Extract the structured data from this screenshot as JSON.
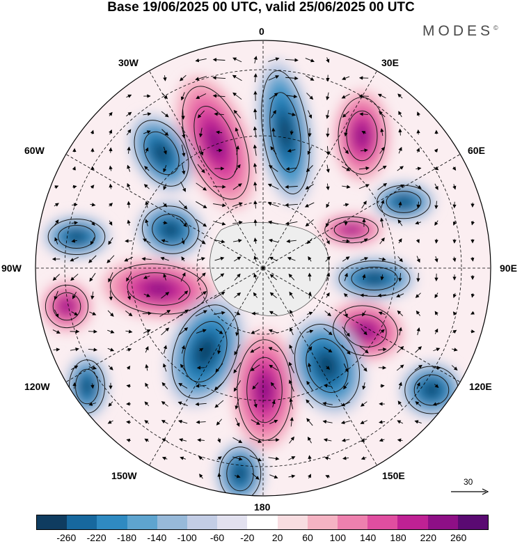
{
  "title": "Base 19/06/2025 00 UTC, valid 25/06/2025 00 UTC",
  "brand": "MODES",
  "brand_mark": "©",
  "longitude_labels": [
    "0",
    "30E",
    "60E",
    "90E",
    "120E",
    "150E",
    "180",
    "150W",
    "120W",
    "90W",
    "60W",
    "30W"
  ],
  "vector_scale_label": "30",
  "colorbar": {
    "colors": [
      "#0f3c60",
      "#17689e",
      "#2f8ac1",
      "#5ea4cf",
      "#97b9d9",
      "#c3cde5",
      "#e2e1ef",
      "#ffffff",
      "#f8dde1",
      "#f5b3c3",
      "#ee80ae",
      "#e04ea0",
      "#bf2194",
      "#8e0f86",
      "#5a0a72"
    ],
    "tick_labels": [
      "-260",
      "-220",
      "-180",
      "-140",
      "-100",
      "-60",
      "-20",
      "20",
      "60",
      "100",
      "140",
      "180",
      "220",
      "260"
    ]
  }
}
